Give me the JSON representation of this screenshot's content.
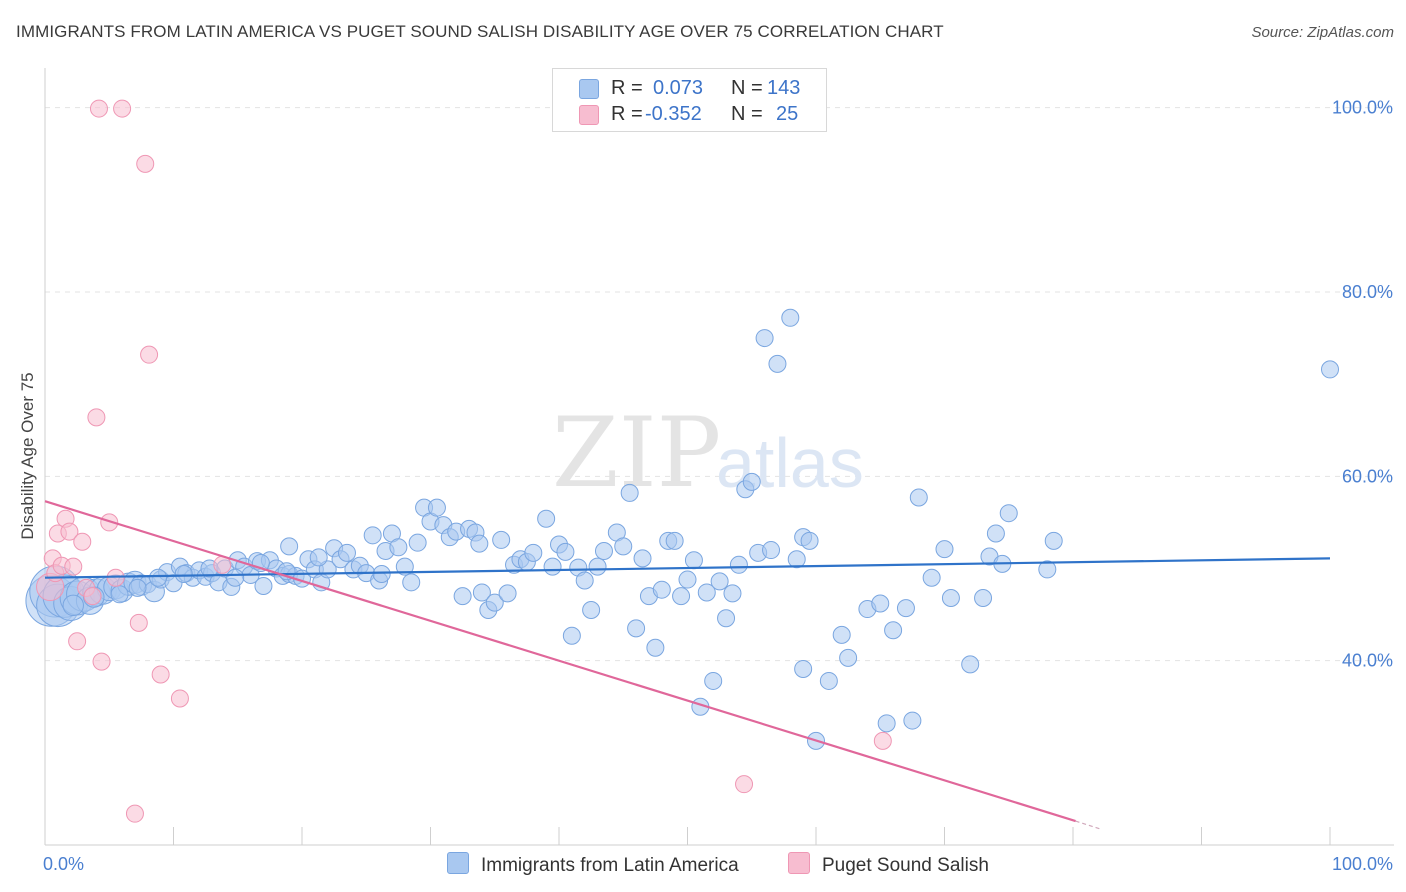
{
  "header": {
    "title": "IMMIGRANTS FROM LATIN AMERICA VS PUGET SOUND SALISH DISABILITY AGE OVER 75 CORRELATION CHART",
    "source": "Source: ZipAtlas.com"
  },
  "legend": {
    "rows": [
      {
        "r_label": "R =",
        "r_value": "0.073",
        "n_label": "N =",
        "n_value": "143"
      },
      {
        "r_label": "R =",
        "r_value": "-0.352",
        "n_label": "N =",
        "n_value": "25"
      }
    ]
  },
  "watermark": {
    "zip": "ZIP",
    "atlas": "atlas"
  },
  "colors": {
    "blue_fill": "#a9c8f0",
    "blue_stroke": "#7aa6e0",
    "blue_line": "#2f73c9",
    "pink_fill": "#f7bdd0",
    "pink_stroke": "#ef97b4",
    "pink_line": "#e0679a",
    "grid": "#e3e3e3",
    "tick_text": "#4a7fd0"
  },
  "chart_data": {
    "type": "scatter",
    "title": "IMMIGRANTS FROM LATIN AMERICA VS PUGET SOUND SALISH DISABILITY AGE OVER 75 CORRELATION CHART",
    "xlabel": "",
    "ylabel": "Disability Age Over 75",
    "xlim": [
      0,
      100
    ],
    "ylim": [
      20,
      103
    ],
    "x_tick_labels": [
      "0.0%",
      "100.0%"
    ],
    "y_tick_values": [
      40,
      60,
      80,
      100
    ],
    "y_tick_labels": [
      "40.0%",
      "60.0%",
      "80.0%",
      "100.0%"
    ],
    "grid": true,
    "legend_position": "top-center",
    "series": [
      {
        "name": "Immigrants from Latin America",
        "color": "#a9c8f0",
        "r": 0.073,
        "n": 143,
        "trend": {
          "x": [
            0,
            100
          ],
          "y": [
            49.0,
            51.1
          ]
        },
        "points": [
          [
            0.5,
            46.5,
            3
          ],
          [
            0.8,
            47.5,
            3
          ],
          [
            1.0,
            46.0,
            2.5
          ],
          [
            1.5,
            47.0,
            2.5
          ],
          [
            2.0,
            46.2,
            2
          ],
          [
            2.5,
            46.8,
            2
          ],
          [
            3.0,
            47.2,
            2
          ],
          [
            3.5,
            46.5,
            1.6
          ],
          [
            4.0,
            47.4,
            1.6
          ],
          [
            4.5,
            47.6,
            1.6
          ],
          [
            5.0,
            47.8,
            1.4
          ],
          [
            5.5,
            48.0,
            1.4
          ],
          [
            6.0,
            47.6,
            1.3
          ],
          [
            6.5,
            48.3,
            1.3
          ],
          [
            7.0,
            48.5,
            1.3
          ],
          [
            7.5,
            48.2,
            1.2
          ],
          [
            8.0,
            48.3,
            1
          ],
          [
            8.5,
            47.5,
            1.2
          ],
          [
            9.0,
            48.8,
            1
          ],
          [
            9.5,
            49.6,
            1
          ],
          [
            10.0,
            48.4,
            1
          ],
          [
            10.5,
            50.2,
            1
          ],
          [
            11.0,
            49.5,
            1
          ],
          [
            11.5,
            49.0,
            1
          ],
          [
            12.0,
            49.8,
            1
          ],
          [
            12.5,
            49.1,
            1
          ],
          [
            13.0,
            49.5,
            1
          ],
          [
            13.5,
            48.5,
            1
          ],
          [
            14.0,
            50.0,
            1
          ],
          [
            14.5,
            48.0,
            1
          ],
          [
            15.0,
            50.9,
            1
          ],
          [
            15.5,
            50.2,
            1
          ],
          [
            16.0,
            49.3,
            1
          ],
          [
            16.5,
            50.8,
            1
          ],
          [
            17.0,
            48.1,
            1
          ],
          [
            17.5,
            50.9,
            1
          ],
          [
            18.0,
            50.0,
            1
          ],
          [
            18.5,
            49.2,
            1
          ],
          [
            19.0,
            49.4,
            1
          ],
          [
            19.5,
            49.2,
            1
          ],
          [
            19.0,
            52.4,
            1
          ],
          [
            20.0,
            48.9,
            1
          ],
          [
            20.5,
            51.0,
            1
          ],
          [
            21.0,
            49.9,
            1
          ],
          [
            21.5,
            48.5,
            1
          ],
          [
            22.0,
            49.9,
            1
          ],
          [
            22.5,
            52.2,
            1
          ],
          [
            23.0,
            51.0,
            1
          ],
          [
            23.5,
            51.7,
            1
          ],
          [
            24.0,
            49.9,
            1
          ],
          [
            24.5,
            50.3,
            1
          ],
          [
            25.0,
            49.5,
            1
          ],
          [
            25.5,
            53.6,
            1
          ],
          [
            26.0,
            48.7,
            1
          ],
          [
            26.5,
            51.9,
            1
          ],
          [
            27.0,
            53.8,
            1
          ],
          [
            27.5,
            52.3,
            1
          ],
          [
            28.0,
            50.2,
            1
          ],
          [
            28.5,
            48.5,
            1
          ],
          [
            29.0,
            52.8,
            1
          ],
          [
            29.5,
            56.6,
            1
          ],
          [
            30.0,
            55.1,
            1
          ],
          [
            30.5,
            56.6,
            1
          ],
          [
            31.0,
            54.7,
            1
          ],
          [
            31.5,
            53.4,
            1
          ],
          [
            32.0,
            54.0,
            1
          ],
          [
            32.5,
            47.0,
            1
          ],
          [
            33.0,
            54.3,
            1
          ],
          [
            33.5,
            53.9,
            1
          ],
          [
            34.0,
            47.4,
            1
          ],
          [
            34.5,
            45.5,
            1
          ],
          [
            35.0,
            46.3,
            1
          ],
          [
            35.5,
            53.1,
            1
          ],
          [
            36.0,
            47.3,
            1
          ],
          [
            36.5,
            50.4,
            1
          ],
          [
            37.0,
            51.0,
            1
          ],
          [
            37.5,
            50.7,
            1
          ],
          [
            38.0,
            51.7,
            1
          ],
          [
            39.0,
            55.4,
            1
          ],
          [
            39.5,
            50.2,
            1
          ],
          [
            40.0,
            52.6,
            1
          ],
          [
            40.5,
            51.8,
            1
          ],
          [
            41.0,
            42.7,
            1
          ],
          [
            41.5,
            50.1,
            1
          ],
          [
            42.0,
            48.7,
            1
          ],
          [
            42.5,
            45.5,
            1
          ],
          [
            43.0,
            50.2,
            1
          ],
          [
            43.5,
            51.9,
            1
          ],
          [
            44.5,
            53.9,
            1
          ],
          [
            45.0,
            52.4,
            1
          ],
          [
            45.5,
            58.2,
            1
          ],
          [
            46.0,
            43.5,
            1
          ],
          [
            46.5,
            51.1,
            1
          ],
          [
            47.0,
            47.0,
            1
          ],
          [
            47.5,
            41.4,
            1
          ],
          [
            48.0,
            47.7,
            1
          ],
          [
            48.5,
            53.0,
            1
          ],
          [
            49.0,
            53.0,
            1
          ],
          [
            49.5,
            47.0,
            1
          ],
          [
            50.0,
            48.8,
            1
          ],
          [
            50.5,
            50.9,
            1
          ],
          [
            51.0,
            35.0,
            1
          ],
          [
            51.5,
            47.4,
            1
          ],
          [
            52.0,
            37.8,
            1
          ],
          [
            52.5,
            48.6,
            1
          ],
          [
            53.0,
            44.6,
            1
          ],
          [
            53.5,
            47.3,
            1
          ],
          [
            54.0,
            50.4,
            1
          ],
          [
            54.5,
            58.6,
            1
          ],
          [
            55.0,
            59.4,
            1
          ],
          [
            55.5,
            51.7,
            1
          ],
          [
            56.0,
            75.0,
            1
          ],
          [
            56.5,
            52.0,
            1
          ],
          [
            57.0,
            72.2,
            1
          ],
          [
            58.0,
            77.2,
            1
          ],
          [
            58.5,
            51.0,
            1
          ],
          [
            59.0,
            53.4,
            1
          ],
          [
            59.5,
            53.0,
            1
          ],
          [
            59.0,
            39.1,
            1
          ],
          [
            60.0,
            31.3,
            1
          ],
          [
            61.0,
            37.8,
            1
          ],
          [
            62.0,
            42.8,
            1
          ],
          [
            62.5,
            40.3,
            1
          ],
          [
            64.0,
            45.6,
            1
          ],
          [
            65.0,
            46.2,
            1
          ],
          [
            65.5,
            33.2,
            1
          ],
          [
            66.0,
            43.3,
            1
          ],
          [
            67.0,
            45.7,
            1
          ],
          [
            67.5,
            33.5,
            1
          ],
          [
            68.0,
            57.7,
            1
          ],
          [
            69.0,
            49.0,
            1
          ],
          [
            70.0,
            52.1,
            1
          ],
          [
            70.5,
            46.8,
            1
          ],
          [
            72.0,
            39.6,
            1
          ],
          [
            73.0,
            46.8,
            1
          ],
          [
            73.5,
            51.3,
            1
          ],
          [
            74.0,
            53.8,
            1
          ],
          [
            74.5,
            50.5,
            1
          ],
          [
            75.0,
            56.0,
            1
          ],
          [
            78.0,
            49.9,
            1
          ],
          [
            78.5,
            53.0,
            1
          ],
          [
            100.0,
            71.6,
            1
          ],
          [
            2.2,
            46.0,
            1.2
          ],
          [
            3.8,
            46.9,
            1.2
          ],
          [
            5.8,
            47.2,
            1
          ],
          [
            7.2,
            47.9,
            1
          ],
          [
            8.8,
            49.0,
            1
          ],
          [
            10.8,
            49.4,
            1
          ],
          [
            12.8,
            50.0,
            1
          ],
          [
            14.8,
            49.0,
            1
          ],
          [
            16.8,
            50.6,
            1
          ],
          [
            18.8,
            49.7,
            1
          ],
          [
            21.3,
            51.2,
            1
          ],
          [
            26.2,
            49.4,
            1
          ],
          [
            33.8,
            52.7,
            1
          ]
        ]
      },
      {
        "name": "Puget Sound Salish",
        "color": "#f7bdd0",
        "r": -0.352,
        "n": 25,
        "trend": {
          "x": [
            0,
            80.2
          ],
          "y": [
            57.3,
            22.6
          ]
        },
        "trend_dashed": {
          "x": [
            80.2,
            82.2
          ],
          "y": [
            22.6,
            21.7
          ]
        },
        "points": [
          [
            0.4,
            48.0,
            1.6
          ],
          [
            0.6,
            51.1,
            1
          ],
          [
            0.8,
            49.5,
            1
          ],
          [
            1.0,
            53.8,
            1
          ],
          [
            1.3,
            50.3,
            1
          ],
          [
            1.6,
            55.4,
            1
          ],
          [
            1.9,
            54.0,
            1
          ],
          [
            2.2,
            50.2,
            1
          ],
          [
            2.5,
            42.1,
            1
          ],
          [
            2.9,
            52.9,
            1
          ],
          [
            3.2,
            47.9,
            1
          ],
          [
            3.7,
            47.0,
            1
          ],
          [
            4.0,
            66.4,
            1
          ],
          [
            4.4,
            39.9,
            1
          ],
          [
            5.0,
            55.0,
            1
          ],
          [
            5.5,
            49.0,
            1
          ],
          [
            4.2,
            99.9,
            1
          ],
          [
            6.0,
            99.9,
            1
          ],
          [
            7.0,
            23.4,
            1
          ],
          [
            7.3,
            44.1,
            1
          ],
          [
            7.8,
            93.9,
            1
          ],
          [
            8.1,
            73.2,
            1
          ],
          [
            9.0,
            38.5,
            1
          ],
          [
            10.5,
            35.9,
            1
          ],
          [
            13.8,
            50.4,
            1
          ],
          [
            54.4,
            26.6,
            1
          ],
          [
            65.2,
            31.3,
            1
          ]
        ]
      }
    ]
  },
  "bottom_legend": {
    "items": [
      {
        "label": "Immigrants from Latin America"
      },
      {
        "label": "Puget Sound Salish"
      }
    ]
  }
}
